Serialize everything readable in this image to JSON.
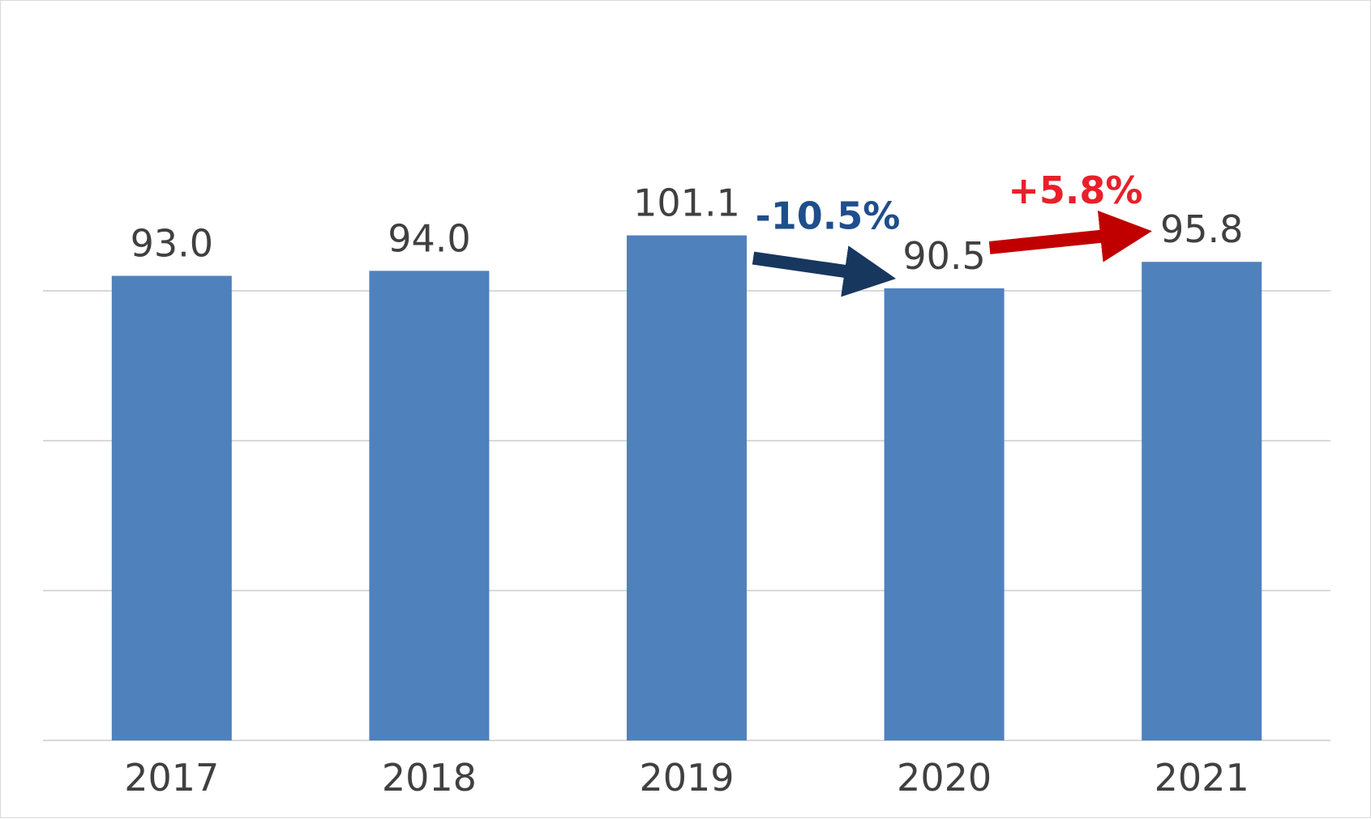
{
  "chart_data": {
    "type": "bar",
    "categories": [
      "2017",
      "2018",
      "2019",
      "2020",
      "2021"
    ],
    "values": [
      93.0,
      94.0,
      101.1,
      90.5,
      95.8
    ],
    "data_labels": [
      "93.0",
      "94.0",
      "101.1",
      "90.5",
      "95.8"
    ],
    "ylim": [
      0,
      120
    ],
    "gridlines": [
      0,
      30,
      60,
      90
    ],
    "grid": true,
    "legend": "none",
    "bar_color": "#4f81bd",
    "annotations": [
      {
        "text": "-10.5%",
        "from": "2019",
        "to": "2020",
        "color": "#17375e",
        "text_color": "#1f4e8c"
      },
      {
        "text": "+5.8%",
        "from": "2020",
        "to": "2021",
        "color": "#c00000",
        "text_color": "#e8202a"
      }
    ]
  }
}
